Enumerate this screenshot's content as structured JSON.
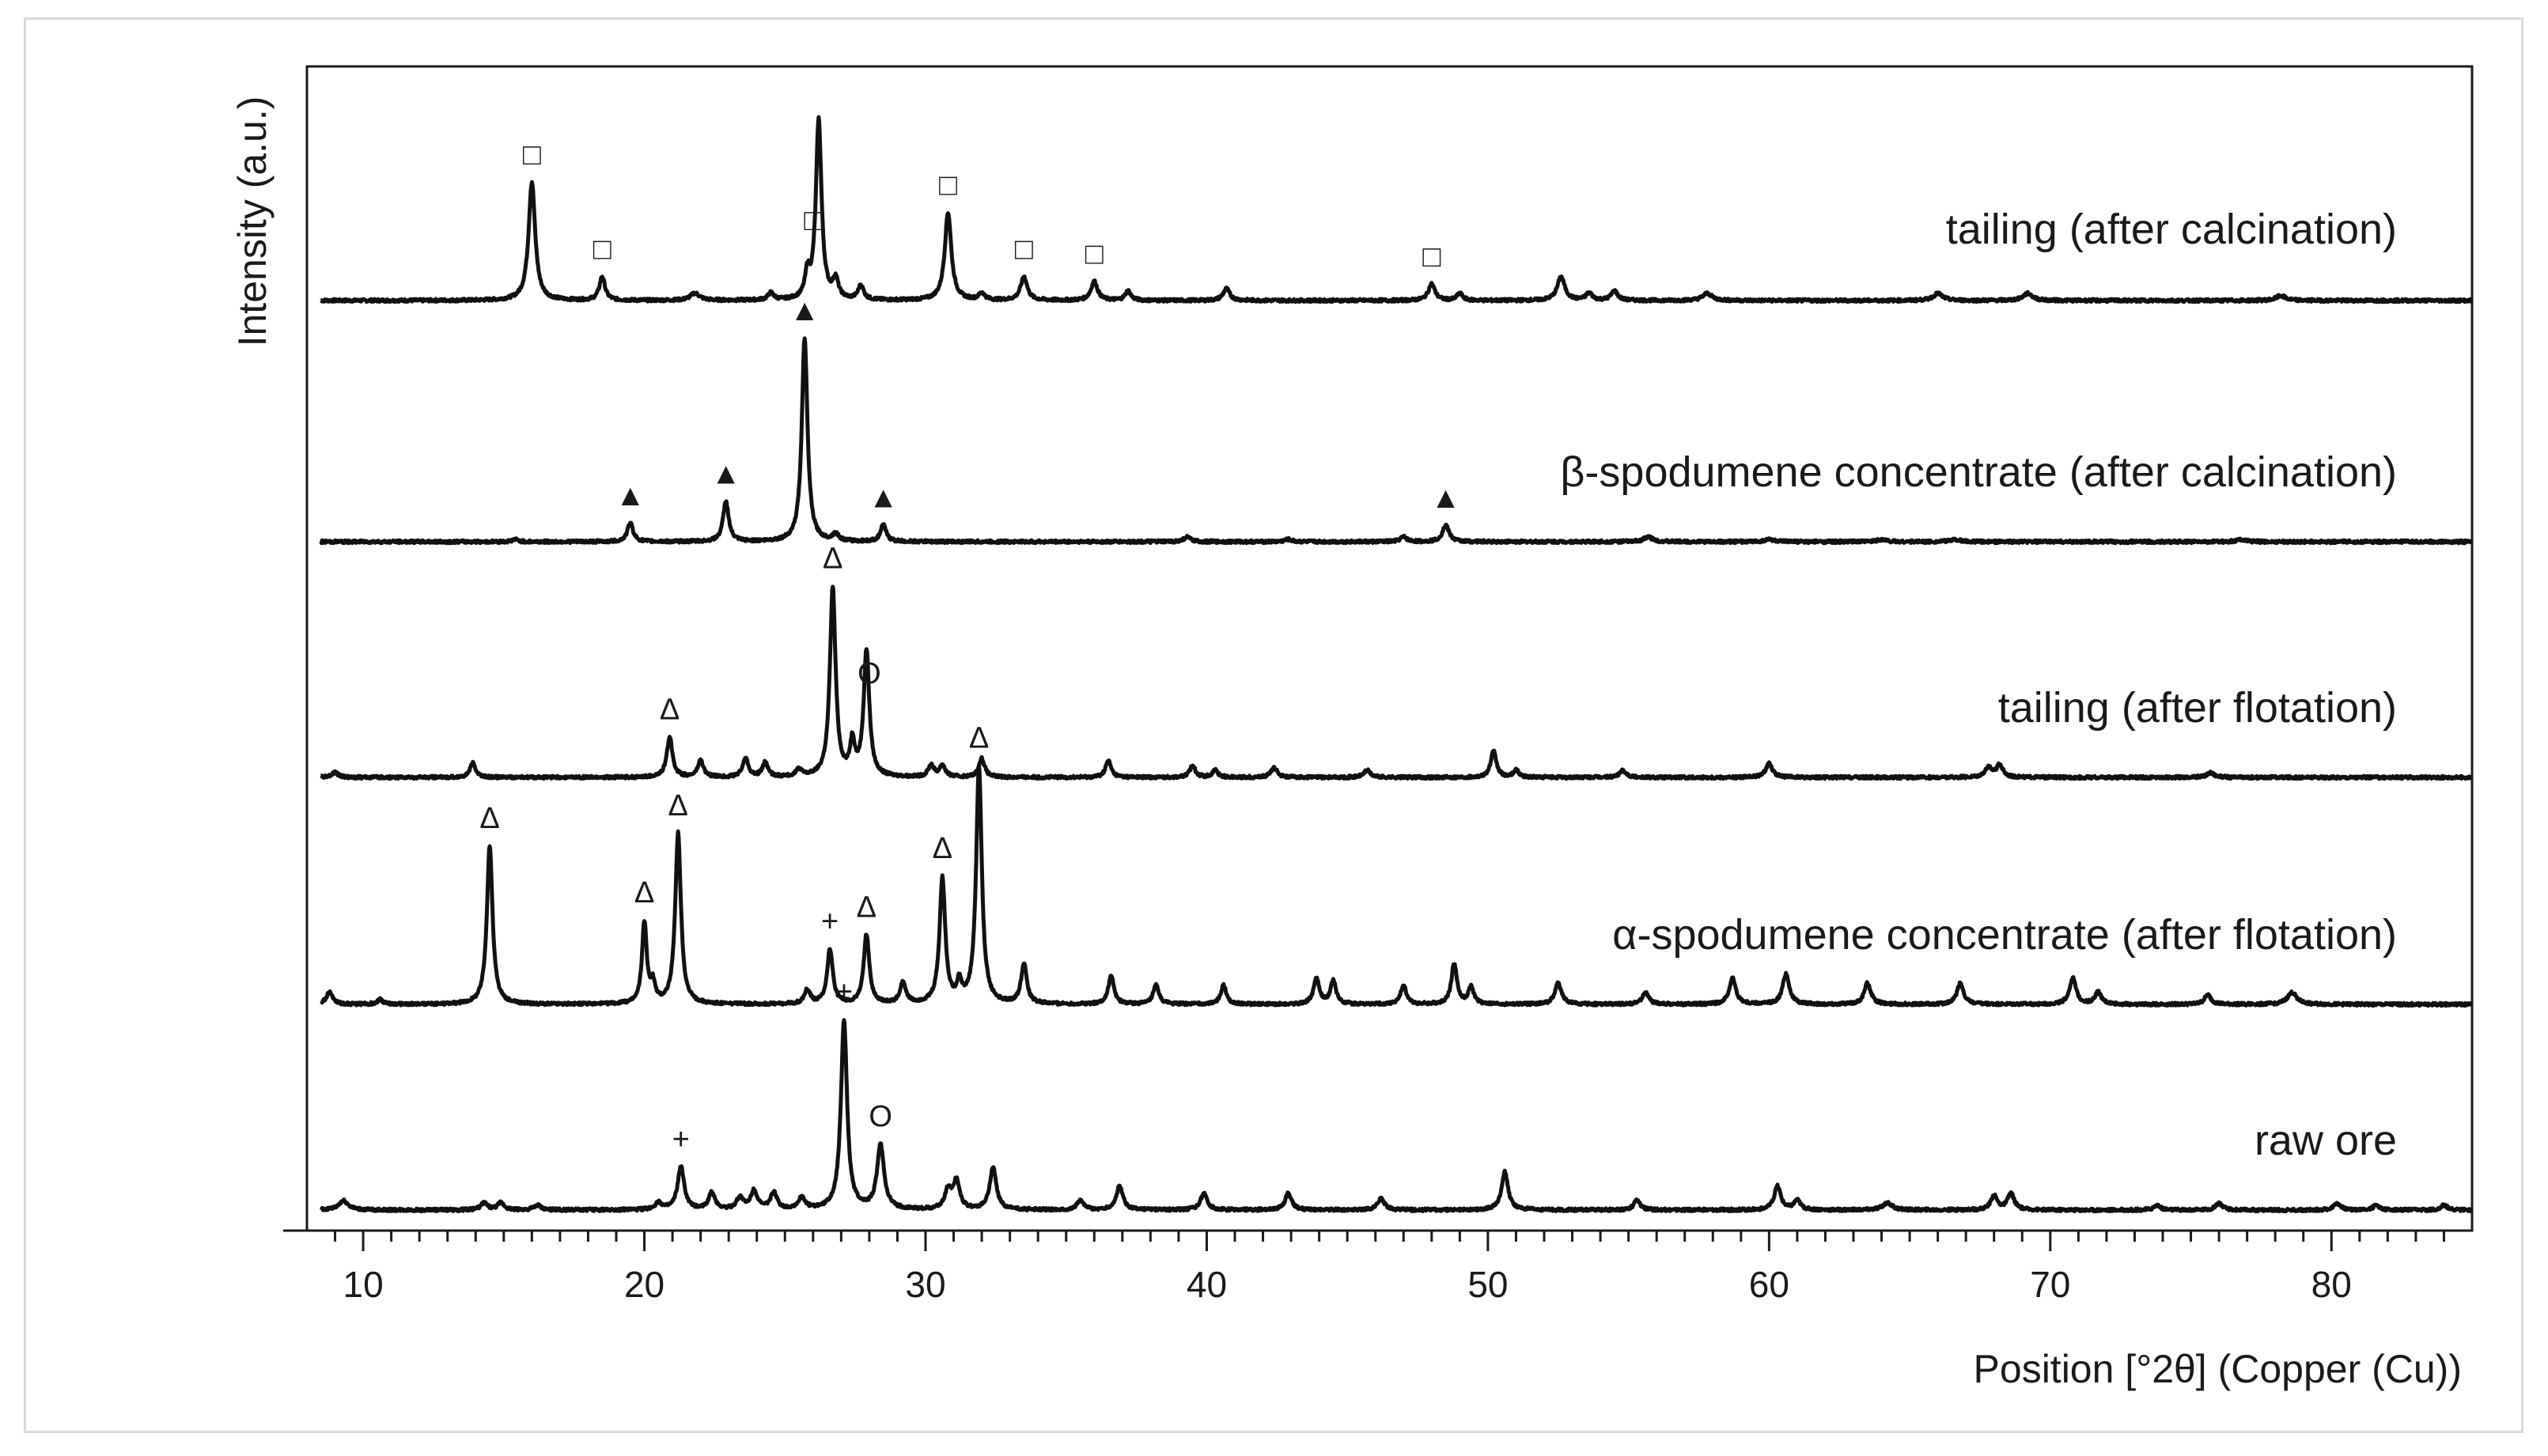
{
  "chart_data": {
    "type": "line",
    "xlabel": "Position [°2θ] (Copper (Cu))",
    "ylabel": "Intensity (a.u.)",
    "xlim": [
      8,
      85
    ],
    "x_ticks": [
      10,
      20,
      30,
      40,
      50,
      60,
      70,
      80
    ],
    "x_tick_labels": [
      "10",
      "20",
      "30",
      "40",
      "50",
      "60",
      "70",
      "80"
    ],
    "grid": false,
    "series": [
      {
        "name": "tailing (after calcination)",
        "offset": 4,
        "peaks": [
          {
            "x": 16.0,
            "h": 0.5,
            "w": 0.14
          },
          {
            "x": 18.5,
            "h": 0.1,
            "w": 0.12
          },
          {
            "x": 21.8,
            "h": 0.03,
            "w": 0.2
          },
          {
            "x": 24.5,
            "h": 0.03,
            "w": 0.12
          },
          {
            "x": 25.8,
            "h": 0.1,
            "w": 0.1
          },
          {
            "x": 26.2,
            "h": 0.76,
            "w": 0.12
          },
          {
            "x": 26.8,
            "h": 0.08,
            "w": 0.12
          },
          {
            "x": 27.7,
            "h": 0.06,
            "w": 0.12
          },
          {
            "x": 30.8,
            "h": 0.37,
            "w": 0.14
          },
          {
            "x": 32.0,
            "h": 0.03,
            "w": 0.12
          },
          {
            "x": 33.5,
            "h": 0.1,
            "w": 0.14
          },
          {
            "x": 36.0,
            "h": 0.08,
            "w": 0.14
          },
          {
            "x": 37.2,
            "h": 0.04,
            "w": 0.12
          },
          {
            "x": 40.7,
            "h": 0.05,
            "w": 0.14
          },
          {
            "x": 48.0,
            "h": 0.07,
            "w": 0.14
          },
          {
            "x": 49.0,
            "h": 0.03,
            "w": 0.12
          },
          {
            "x": 52.6,
            "h": 0.1,
            "w": 0.16
          },
          {
            "x": 53.6,
            "h": 0.03,
            "w": 0.14
          },
          {
            "x": 54.5,
            "h": 0.04,
            "w": 0.14
          },
          {
            "x": 57.8,
            "h": 0.03,
            "w": 0.2
          },
          {
            "x": 66.0,
            "h": 0.03,
            "w": 0.2
          },
          {
            "x": 69.2,
            "h": 0.03,
            "w": 0.2
          },
          {
            "x": 78.2,
            "h": 0.02,
            "w": 0.2
          }
        ],
        "markers": [
          {
            "x": 16.0,
            "symbol": "□"
          },
          {
            "x": 18.5,
            "symbol": "□"
          },
          {
            "x": 26.0,
            "symbol": "□"
          },
          {
            "x": 30.8,
            "symbol": "□"
          },
          {
            "x": 33.5,
            "symbol": "□"
          },
          {
            "x": 36.0,
            "symbol": "□"
          },
          {
            "x": 48.0,
            "symbol": "□"
          }
        ]
      },
      {
        "name": "β-spodumene concentrate (after calcination)",
        "offset": 3,
        "peaks": [
          {
            "x": 15.4,
            "h": 0.01,
            "w": 0.12
          },
          {
            "x": 19.5,
            "h": 0.08,
            "w": 0.12
          },
          {
            "x": 22.9,
            "h": 0.17,
            "w": 0.12
          },
          {
            "x": 25.7,
            "h": 0.86,
            "w": 0.12
          },
          {
            "x": 26.8,
            "h": 0.03,
            "w": 0.12
          },
          {
            "x": 28.5,
            "h": 0.07,
            "w": 0.12
          },
          {
            "x": 39.3,
            "h": 0.02,
            "w": 0.14
          },
          {
            "x": 42.9,
            "h": 0.01,
            "w": 0.14
          },
          {
            "x": 47.0,
            "h": 0.02,
            "w": 0.14
          },
          {
            "x": 48.5,
            "h": 0.07,
            "w": 0.14
          },
          {
            "x": 55.7,
            "h": 0.02,
            "w": 0.2
          },
          {
            "x": 60.0,
            "h": 0.01,
            "w": 0.2
          },
          {
            "x": 64.0,
            "h": 0.01,
            "w": 0.2
          },
          {
            "x": 66.6,
            "h": 0.01,
            "w": 0.2
          },
          {
            "x": 76.8,
            "h": 0.01,
            "w": 0.2
          }
        ],
        "markers": [
          {
            "x": 19.5,
            "symbol": "▲"
          },
          {
            "x": 22.9,
            "symbol": "▲"
          },
          {
            "x": 25.7,
            "symbol": "▲"
          },
          {
            "x": 28.5,
            "symbol": "▲"
          },
          {
            "x": 48.5,
            "symbol": "▲"
          }
        ]
      },
      {
        "name": "tailing (after flotation)",
        "offset": 2,
        "peaks": [
          {
            "x": 9.0,
            "h": 0.02,
            "w": 0.14
          },
          {
            "x": 13.9,
            "h": 0.06,
            "w": 0.12
          },
          {
            "x": 20.9,
            "h": 0.17,
            "w": 0.12
          },
          {
            "x": 22.0,
            "h": 0.07,
            "w": 0.12
          },
          {
            "x": 23.6,
            "h": 0.08,
            "w": 0.12
          },
          {
            "x": 24.3,
            "h": 0.06,
            "w": 0.12
          },
          {
            "x": 25.5,
            "h": 0.03,
            "w": 0.12
          },
          {
            "x": 26.7,
            "h": 0.8,
            "w": 0.12
          },
          {
            "x": 27.4,
            "h": 0.14,
            "w": 0.1
          },
          {
            "x": 27.9,
            "h": 0.53,
            "w": 0.12
          },
          {
            "x": 30.2,
            "h": 0.05,
            "w": 0.12
          },
          {
            "x": 30.6,
            "h": 0.05,
            "w": 0.12
          },
          {
            "x": 32.0,
            "h": 0.08,
            "w": 0.12
          },
          {
            "x": 36.5,
            "h": 0.07,
            "w": 0.12
          },
          {
            "x": 39.5,
            "h": 0.05,
            "w": 0.12
          },
          {
            "x": 40.3,
            "h": 0.03,
            "w": 0.12
          },
          {
            "x": 42.4,
            "h": 0.04,
            "w": 0.14
          },
          {
            "x": 45.7,
            "h": 0.03,
            "w": 0.14
          },
          {
            "x": 50.2,
            "h": 0.11,
            "w": 0.12
          },
          {
            "x": 51.0,
            "h": 0.03,
            "w": 0.12
          },
          {
            "x": 54.8,
            "h": 0.03,
            "w": 0.14
          },
          {
            "x": 60.0,
            "h": 0.06,
            "w": 0.14
          },
          {
            "x": 67.8,
            "h": 0.04,
            "w": 0.16
          },
          {
            "x": 68.2,
            "h": 0.05,
            "w": 0.14
          },
          {
            "x": 75.7,
            "h": 0.02,
            "w": 0.16
          }
        ],
        "markers": [
          {
            "x": 20.9,
            "symbol": "Δ"
          },
          {
            "x": 26.7,
            "symbol": "Δ"
          },
          {
            "x": 28.0,
            "symbol": "O"
          }
        ]
      },
      {
        "name": "α-spodumene concentrate (after flotation)",
        "offset": 1,
        "peaks": [
          {
            "x": 8.8,
            "h": 0.05,
            "w": 0.14
          },
          {
            "x": 10.6,
            "h": 0.02,
            "w": 0.12
          },
          {
            "x": 14.5,
            "h": 0.67,
            "w": 0.12
          },
          {
            "x": 20.0,
            "h": 0.34,
            "w": 0.1
          },
          {
            "x": 20.3,
            "h": 0.08,
            "w": 0.1
          },
          {
            "x": 21.2,
            "h": 0.72,
            "w": 0.12
          },
          {
            "x": 25.8,
            "h": 0.06,
            "w": 0.12
          },
          {
            "x": 26.6,
            "h": 0.23,
            "w": 0.12
          },
          {
            "x": 27.9,
            "h": 0.29,
            "w": 0.12
          },
          {
            "x": 29.2,
            "h": 0.09,
            "w": 0.12
          },
          {
            "x": 30.6,
            "h": 0.53,
            "w": 0.12
          },
          {
            "x": 31.2,
            "h": 0.08,
            "w": 0.1
          },
          {
            "x": 31.9,
            "h": 1.0,
            "w": 0.12
          },
          {
            "x": 33.5,
            "h": 0.17,
            "w": 0.12
          },
          {
            "x": 36.6,
            "h": 0.12,
            "w": 0.12
          },
          {
            "x": 38.2,
            "h": 0.08,
            "w": 0.12
          },
          {
            "x": 40.6,
            "h": 0.08,
            "w": 0.12
          },
          {
            "x": 43.9,
            "h": 0.11,
            "w": 0.12
          },
          {
            "x": 44.5,
            "h": 0.1,
            "w": 0.12
          },
          {
            "x": 47.0,
            "h": 0.08,
            "w": 0.12
          },
          {
            "x": 48.8,
            "h": 0.17,
            "w": 0.12
          },
          {
            "x": 49.4,
            "h": 0.07,
            "w": 0.12
          },
          {
            "x": 52.5,
            "h": 0.09,
            "w": 0.14
          },
          {
            "x": 55.6,
            "h": 0.05,
            "w": 0.14
          },
          {
            "x": 58.7,
            "h": 0.11,
            "w": 0.14
          },
          {
            "x": 60.6,
            "h": 0.13,
            "w": 0.14
          },
          {
            "x": 63.5,
            "h": 0.09,
            "w": 0.14
          },
          {
            "x": 66.8,
            "h": 0.09,
            "w": 0.14
          },
          {
            "x": 70.8,
            "h": 0.11,
            "w": 0.14
          },
          {
            "x": 71.7,
            "h": 0.05,
            "w": 0.14
          },
          {
            "x": 75.6,
            "h": 0.04,
            "w": 0.14
          },
          {
            "x": 78.6,
            "h": 0.05,
            "w": 0.2
          }
        ],
        "markers": [
          {
            "x": 14.5,
            "symbol": "Δ"
          },
          {
            "x": 20.0,
            "symbol": "Δ"
          },
          {
            "x": 21.2,
            "symbol": "Δ"
          },
          {
            "x": 26.6,
            "symbol": "+"
          },
          {
            "x": 27.9,
            "symbol": "Δ"
          },
          {
            "x": 30.6,
            "symbol": "Δ"
          },
          {
            "x": 31.9,
            "symbol": "Δ"
          }
        ]
      },
      {
        "name": "raw ore",
        "offset": 0,
        "peaks": [
          {
            "x": 9.3,
            "h": 0.04,
            "w": 0.2
          },
          {
            "x": 14.3,
            "h": 0.03,
            "w": 0.14
          },
          {
            "x": 14.9,
            "h": 0.03,
            "w": 0.14
          },
          {
            "x": 16.2,
            "h": 0.02,
            "w": 0.14
          },
          {
            "x": 20.5,
            "h": 0.03,
            "w": 0.14
          },
          {
            "x": 21.3,
            "h": 0.18,
            "w": 0.14
          },
          {
            "x": 22.4,
            "h": 0.07,
            "w": 0.14
          },
          {
            "x": 23.4,
            "h": 0.05,
            "w": 0.14
          },
          {
            "x": 23.9,
            "h": 0.08,
            "w": 0.14
          },
          {
            "x": 24.6,
            "h": 0.07,
            "w": 0.14
          },
          {
            "x": 25.6,
            "h": 0.05,
            "w": 0.14
          },
          {
            "x": 27.1,
            "h": 0.8,
            "w": 0.13
          },
          {
            "x": 28.4,
            "h": 0.27,
            "w": 0.15
          },
          {
            "x": 30.8,
            "h": 0.08,
            "w": 0.14
          },
          {
            "x": 31.1,
            "h": 0.12,
            "w": 0.14
          },
          {
            "x": 32.4,
            "h": 0.18,
            "w": 0.14
          },
          {
            "x": 35.5,
            "h": 0.04,
            "w": 0.14
          },
          {
            "x": 36.9,
            "h": 0.1,
            "w": 0.14
          },
          {
            "x": 39.9,
            "h": 0.07,
            "w": 0.14
          },
          {
            "x": 42.9,
            "h": 0.07,
            "w": 0.14
          },
          {
            "x": 46.2,
            "h": 0.05,
            "w": 0.14
          },
          {
            "x": 50.6,
            "h": 0.16,
            "w": 0.14
          },
          {
            "x": 55.3,
            "h": 0.04,
            "w": 0.14
          },
          {
            "x": 60.3,
            "h": 0.1,
            "w": 0.14
          },
          {
            "x": 61.0,
            "h": 0.04,
            "w": 0.14
          },
          {
            "x": 64.2,
            "h": 0.03,
            "w": 0.2
          },
          {
            "x": 68.0,
            "h": 0.06,
            "w": 0.14
          },
          {
            "x": 68.6,
            "h": 0.07,
            "w": 0.14
          },
          {
            "x": 73.8,
            "h": 0.02,
            "w": 0.14
          },
          {
            "x": 76.0,
            "h": 0.03,
            "w": 0.14
          },
          {
            "x": 80.2,
            "h": 0.03,
            "w": 0.14
          },
          {
            "x": 81.6,
            "h": 0.02,
            "w": 0.14
          },
          {
            "x": 84.0,
            "h": 0.02,
            "w": 0.14
          }
        ],
        "markers": [
          {
            "x": 21.3,
            "symbol": "+"
          },
          {
            "x": 27.1,
            "symbol": "+"
          },
          {
            "x": 28.4,
            "symbol": "O"
          }
        ]
      }
    ]
  }
}
